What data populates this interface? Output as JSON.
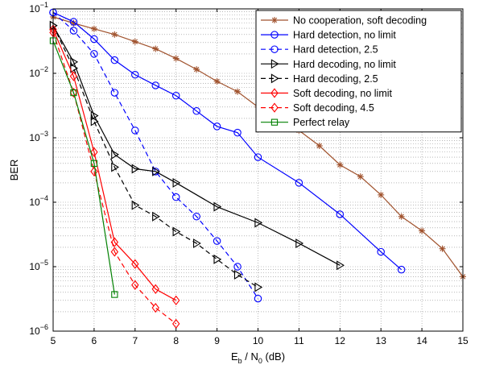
{
  "chart_data": {
    "type": "line",
    "xlabel": {
      "main": "E",
      "sub1": "b",
      "mid": " / N",
      "sub2": "0",
      "tail": " (dB)"
    },
    "ylabel": "BER",
    "xlim": [
      5,
      15
    ],
    "ylim": [
      1e-06,
      0.1
    ],
    "yscale": "log",
    "grid": "major and minor, dotted",
    "legend_position": "top-right",
    "x_ticks": [
      5,
      6,
      7,
      8,
      9,
      10,
      11,
      12,
      13,
      14,
      15
    ],
    "y_ticks": [
      {
        "value": 1e-06,
        "base": "10",
        "exp": "−6"
      },
      {
        "value": 1e-05,
        "base": "10",
        "exp": "−5"
      },
      {
        "value": 0.0001,
        "base": "10",
        "exp": "−4"
      },
      {
        "value": 0.001,
        "base": "10",
        "exp": "−3"
      },
      {
        "value": 0.01,
        "base": "10",
        "exp": "−2"
      },
      {
        "value": 0.1,
        "base": "10",
        "exp": "−1"
      }
    ],
    "series": [
      {
        "name": "No cooperation, soft decoding",
        "color": "#a0522d",
        "dash": "solid",
        "marker": "star",
        "x": [
          5,
          5.5,
          6,
          6.5,
          7,
          7.5,
          8,
          8.5,
          9,
          9.5,
          10,
          10.5,
          11,
          11.5,
          12,
          12.5,
          13,
          13.5,
          14,
          14.5,
          15
        ],
        "y": [
          0.075,
          0.06,
          0.049,
          0.04,
          0.031,
          0.024,
          0.017,
          0.0115,
          0.0075,
          0.0052,
          0.003,
          0.0022,
          0.0013,
          0.00075,
          0.00038,
          0.00025,
          0.00013,
          6e-05,
          3.6e-05,
          1.9e-05,
          7e-06
        ]
      },
      {
        "name": "Hard detection, no limit",
        "color": "#0000ff",
        "dash": "solid",
        "marker": "circle",
        "x": [
          5,
          5.5,
          6,
          6.5,
          7,
          7.5,
          8,
          8.5,
          9,
          9.5,
          10,
          11,
          12,
          13,
          13.5
        ],
        "y": [
          0.088,
          0.063,
          0.034,
          0.016,
          0.0095,
          0.0065,
          0.0045,
          0.0026,
          0.0015,
          0.0012,
          0.0005,
          0.0002,
          6.5e-05,
          1.7e-05,
          9e-06
        ]
      },
      {
        "name": "Hard detection, 2.5",
        "color": "#0000ff",
        "dash": "dashed",
        "marker": "circle",
        "x": [
          5,
          5.5,
          6,
          6.5,
          7,
          7.5,
          8,
          8.5,
          9,
          9.5,
          10
        ],
        "y": [
          0.088,
          0.046,
          0.02,
          0.005,
          0.0013,
          0.0003,
          0.00012,
          6e-05,
          2.5e-05,
          1e-05,
          3.2e-06
        ]
      },
      {
        "name": "Hard decoding, no limit",
        "color": "#000000",
        "dash": "solid",
        "marker": "triangle-right",
        "x": [
          5,
          5.5,
          6,
          6.5,
          7,
          7.5,
          8,
          9,
          10,
          11,
          12
        ],
        "y": [
          0.055,
          0.015,
          0.0022,
          0.00055,
          0.00033,
          0.0003,
          0.0002,
          8.5e-05,
          4.8e-05,
          2.3e-05,
          1.05e-05
        ]
      },
      {
        "name": "Hard decoding, 2.5",
        "color": "#000000",
        "dash": "dashed",
        "marker": "triangle-right",
        "x": [
          5,
          5.5,
          6,
          6.5,
          7,
          7.5,
          8,
          8.5,
          9,
          9.5,
          10
        ],
        "y": [
          0.055,
          0.012,
          0.0018,
          0.00035,
          9e-05,
          6e-05,
          3.5e-05,
          2.3e-05,
          1.3e-05,
          7.5e-06,
          4.8e-06
        ]
      },
      {
        "name": "Soft decoding, no limit",
        "color": "#ff0000",
        "dash": "solid",
        "marker": "diamond",
        "x": [
          5,
          5.5,
          6,
          6.5,
          7,
          7.5,
          8
        ],
        "y": [
          0.048,
          0.009,
          0.0006,
          2.4e-05,
          1.1e-05,
          4.5e-06,
          3e-06
        ]
      },
      {
        "name": "Soft decoding, 4.5",
        "color": "#ff0000",
        "dash": "dashed",
        "marker": "diamond",
        "x": [
          5,
          5.5,
          6,
          6.5,
          7,
          7.5,
          8
        ],
        "y": [
          0.043,
          0.005,
          0.0003,
          1.7e-05,
          5.2e-06,
          2.3e-06,
          1.3e-06
        ]
      },
      {
        "name": "Perfect relay",
        "color": "#008000",
        "dash": "solid",
        "marker": "square",
        "x": [
          5,
          5.5,
          6,
          6.5
        ],
        "y": [
          0.032,
          0.005,
          0.0004,
          3.7e-06
        ]
      }
    ]
  }
}
